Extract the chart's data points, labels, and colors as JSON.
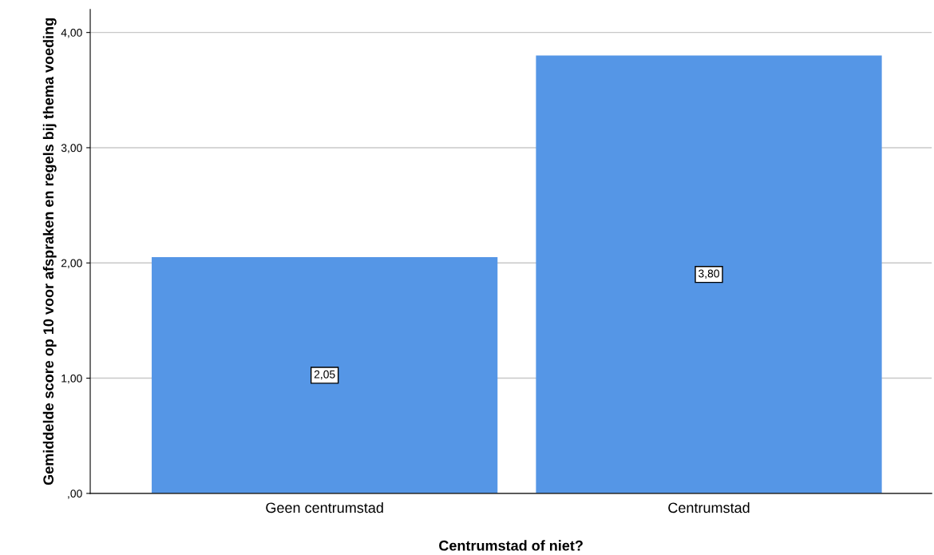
{
  "chart_data": {
    "type": "bar",
    "xlabel": "Centrumstad of niet?",
    "ylabel": "Gemiddelde score op 10 voor afspraken en regels bij thema voeding",
    "categories": [
      "Geen centrumstad",
      "Centrumstad"
    ],
    "values": [
      2.05,
      3.8
    ],
    "value_labels": [
      "2,05",
      "3,80"
    ],
    "color": "#5596e6",
    "ylim": [
      0,
      4.2
    ],
    "yticks": [
      {
        "value": 0,
        "label": ",00"
      },
      {
        "value": 1,
        "label": "1,00"
      },
      {
        "value": 2,
        "label": "2,00"
      },
      {
        "value": 3,
        "label": "3,00"
      },
      {
        "value": 4,
        "label": "4,00"
      }
    ],
    "grid": "y",
    "legend": false
  }
}
